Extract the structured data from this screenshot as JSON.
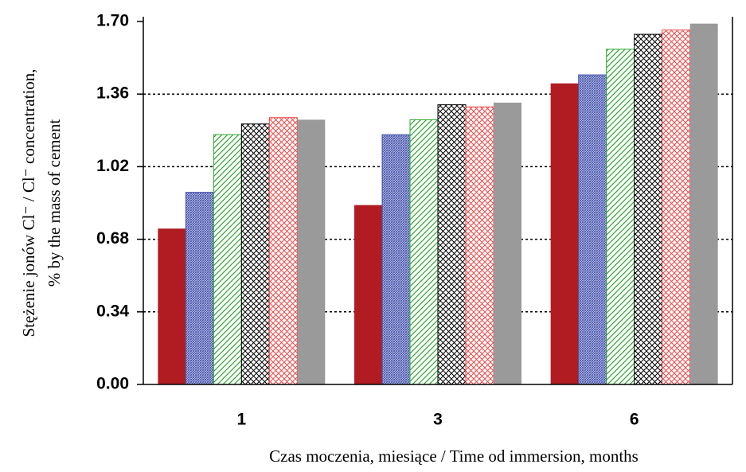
{
  "chart_data": {
    "type": "bar",
    "x_label": "Czas moczenia, miesiące / Time od immersion, months",
    "y_label": [
      "Stężenie jonów Cl⁻ / Cl⁻ concentration,",
      "% by the mass of cement"
    ],
    "categories": [
      "1",
      "3",
      "6"
    ],
    "series": [
      {
        "color": "#b01c22",
        "pattern": "solid",
        "values": [
          0.73,
          0.84,
          1.41
        ]
      },
      {
        "color": "#4a58b0",
        "pattern": "dense",
        "values": [
          0.9,
          1.17,
          1.45
        ]
      },
      {
        "color": "#2fa52f",
        "pattern": "diagonal",
        "values": [
          1.17,
          1.24,
          1.57
        ]
      },
      {
        "color": "#000000",
        "pattern": "cross",
        "values": [
          1.22,
          1.31,
          1.64
        ]
      },
      {
        "color": "#f04848",
        "pattern": "cross",
        "values": [
          1.25,
          1.3,
          1.66
        ]
      },
      {
        "color": "#9a9a9a",
        "pattern": "solid",
        "values": [
          1.24,
          1.32,
          1.69
        ]
      }
    ],
    "ylim": [
      0,
      1.7
    ],
    "yticks": [
      {
        "value": 0,
        "label": "0.00"
      },
      0.34,
      0.68,
      1.02,
      1.36,
      {
        "value": 1.7,
        "label": "1.70"
      }
    ],
    "grid": true
  }
}
